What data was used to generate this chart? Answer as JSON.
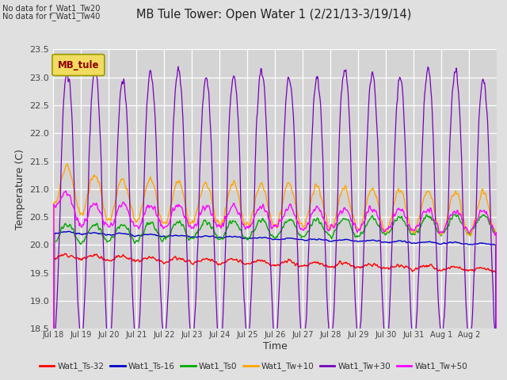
{
  "title": "MB Tule Tower: Open Water 1 (2/21/13-3/19/14)",
  "xlabel": "Time",
  "ylabel": "Temperature (C)",
  "ylim": [
    18.5,
    23.5
  ],
  "annotation_lines": [
    "No data for f_Wat1_Tw20",
    "No data for f_Wat1_Tw40"
  ],
  "legend_box_label": "MB_tule",
  "legend_box_edge_color": "#999900",
  "legend_box_face_color": "#f0dc60",
  "legend_box_text_color": "#8b0000",
  "series": [
    {
      "label": "Wat1_Ts-32",
      "color": "#ff0000"
    },
    {
      "label": "Wat1_Ts-16",
      "color": "#0000cc"
    },
    {
      "label": "Wat1_Ts0",
      "color": "#00aa00"
    },
    {
      "label": "Wat1_Tw+10",
      "color": "#ffa500"
    },
    {
      "label": "Wat1_Tw+30",
      "color": "#7700bb"
    },
    {
      "label": "Wat1_Tw+50",
      "color": "#ff00ff"
    }
  ],
  "x_tick_labels": [
    "Jul 18",
    "Jul 19",
    "Jul 20",
    "Jul 21",
    "Jul 22",
    "Jul 23",
    "Jul 24",
    "Jul 25",
    "Jul 26",
    "Jul 27",
    "Jul 28",
    "Jul 29",
    "Jul 30",
    "Jul 31",
    "Aug 1",
    "Aug 2"
  ],
  "background_color": "#e0e0e0",
  "plot_bg_color": "#d4d4d4",
  "n_days": 16,
  "pts_per_day": 48
}
